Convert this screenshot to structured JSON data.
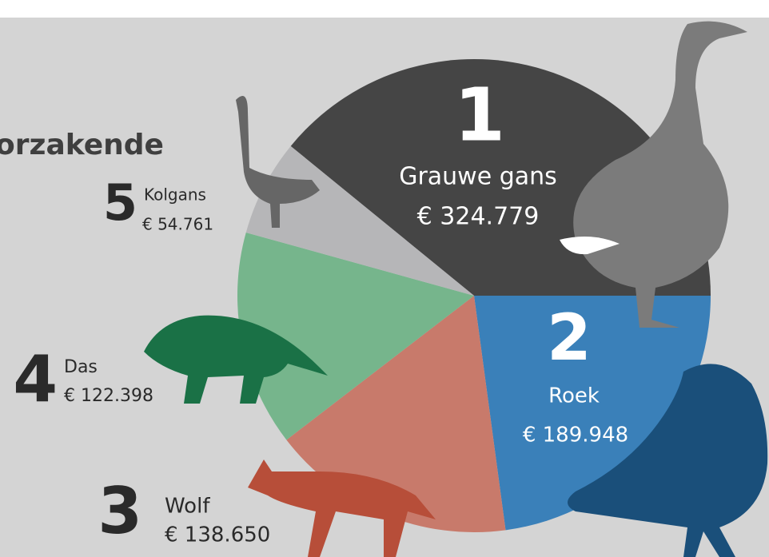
{
  "chart_data": {
    "type": "pie",
    "title": "orzakende",
    "categories": [
      "Grauwe gans",
      "Roek",
      "Wolf",
      "Das",
      "Kolgans"
    ],
    "ranks": [
      1,
      2,
      3,
      4,
      5
    ],
    "values": [
      324779,
      189948,
      138650,
      122398,
      54761
    ],
    "value_labels": [
      "€ 324.779",
      "€ 189.948",
      "€ 138.650",
      "€ 122.398",
      "€ 54.761"
    ],
    "colors": [
      "#454545",
      "#3a80b9",
      "#c87a6b",
      "#76b58c",
      "#b6b6b8"
    ]
  }
}
